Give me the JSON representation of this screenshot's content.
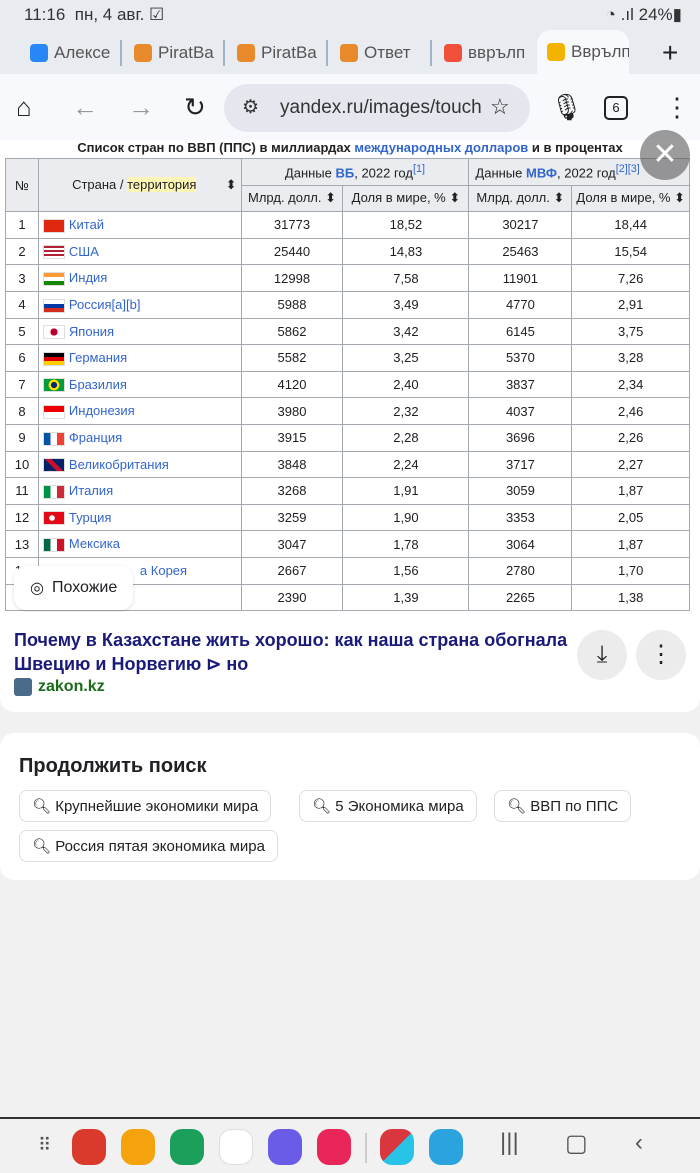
{
  "status": {
    "time": "11:16",
    "date": "пн, 4 авг.",
    "battery": "24%"
  },
  "tabs": [
    {
      "label": "Алексе",
      "color": "#2787f5"
    },
    {
      "label": "PiratBa",
      "color": "#e8892b"
    },
    {
      "label": "PiratBa",
      "color": "#e8892b"
    },
    {
      "label": "Ответ",
      "color": "#e8892b"
    },
    {
      "label": "вврълп",
      "color": "#f04f3a"
    },
    {
      "label": "Вврълп",
      "color": "#f2b400",
      "active": true
    }
  ],
  "toolbar": {
    "url": "yandex.ru/images/touch",
    "tab_count": "6"
  },
  "table": {
    "caption_pre": "Список стран по ВВП (ППС) в миллиардах ",
    "caption_link": "международных долларов",
    "caption_post": " и в процентах",
    "h_num": "№",
    "h_country": "Страна / ",
    "h_country_hl": "территория",
    "h_wb_pre": "Данные ",
    "h_wb_link": "ВБ",
    "h_wb_post": ", 2022 год",
    "h_wb_ref": "[1]",
    "h_imf_pre": "Данные ",
    "h_imf_link": "МВФ",
    "h_imf_post": ", 2022 год",
    "h_imf_ref": "[2][3]",
    "h_bn": "Млрд. долл. ⬍",
    "h_share": "Доля в мире, % ⬍",
    "rows": [
      [
        "1",
        "Китай",
        "31773",
        "18,52",
        "30217",
        "18,44"
      ],
      [
        "2",
        "США",
        "25440",
        "14,83",
        "25463",
        "15,54"
      ],
      [
        "3",
        "Индия",
        "12998",
        "7,58",
        "11901",
        "7,26"
      ],
      [
        "4",
        "Россия[a][b]",
        "5988",
        "3,49",
        "4770",
        "2,91"
      ],
      [
        "5",
        "Япония",
        "5862",
        "3,42",
        "6145",
        "3,75"
      ],
      [
        "6",
        "Германия",
        "5582",
        "3,25",
        "5370",
        "3,28"
      ],
      [
        "7",
        "Бразилия",
        "4120",
        "2,40",
        "3837",
        "2,34"
      ],
      [
        "8",
        "Индонезия",
        "3980",
        "2,32",
        "4037",
        "2,46"
      ],
      [
        "9",
        "Франция",
        "3915",
        "2,28",
        "3696",
        "2,26"
      ],
      [
        "10",
        "Великобритания",
        "3848",
        "2,24",
        "3717",
        "2,27"
      ],
      [
        "11",
        "Италия",
        "3268",
        "1,91",
        "3059",
        "1,87"
      ],
      [
        "12",
        "Турция",
        "3259",
        "1,90",
        "3353",
        "2,05"
      ],
      [
        "13",
        "Мексика",
        "3047",
        "1,78",
        "3064",
        "1,87"
      ],
      [
        "14",
        "а Корея",
        "2667",
        "1,56",
        "2780",
        "1,70"
      ],
      [
        "",
        "",
        "2390",
        "1,39",
        "2265",
        "1,38"
      ]
    ]
  },
  "similar_label": "Похожие",
  "result": {
    "title": "Почему в Казахстане жить хорошо: как наша страна обогнала Швецию и Норвегию ⊳ но",
    "source": "zakon.kz"
  },
  "continue": {
    "heading": "Продолжить поиск",
    "chips": [
      "Крупнейшие экономики мира",
      "5 Экономика мира",
      "ВВП по ППС",
      "Россия пятая экономика мира"
    ]
  }
}
